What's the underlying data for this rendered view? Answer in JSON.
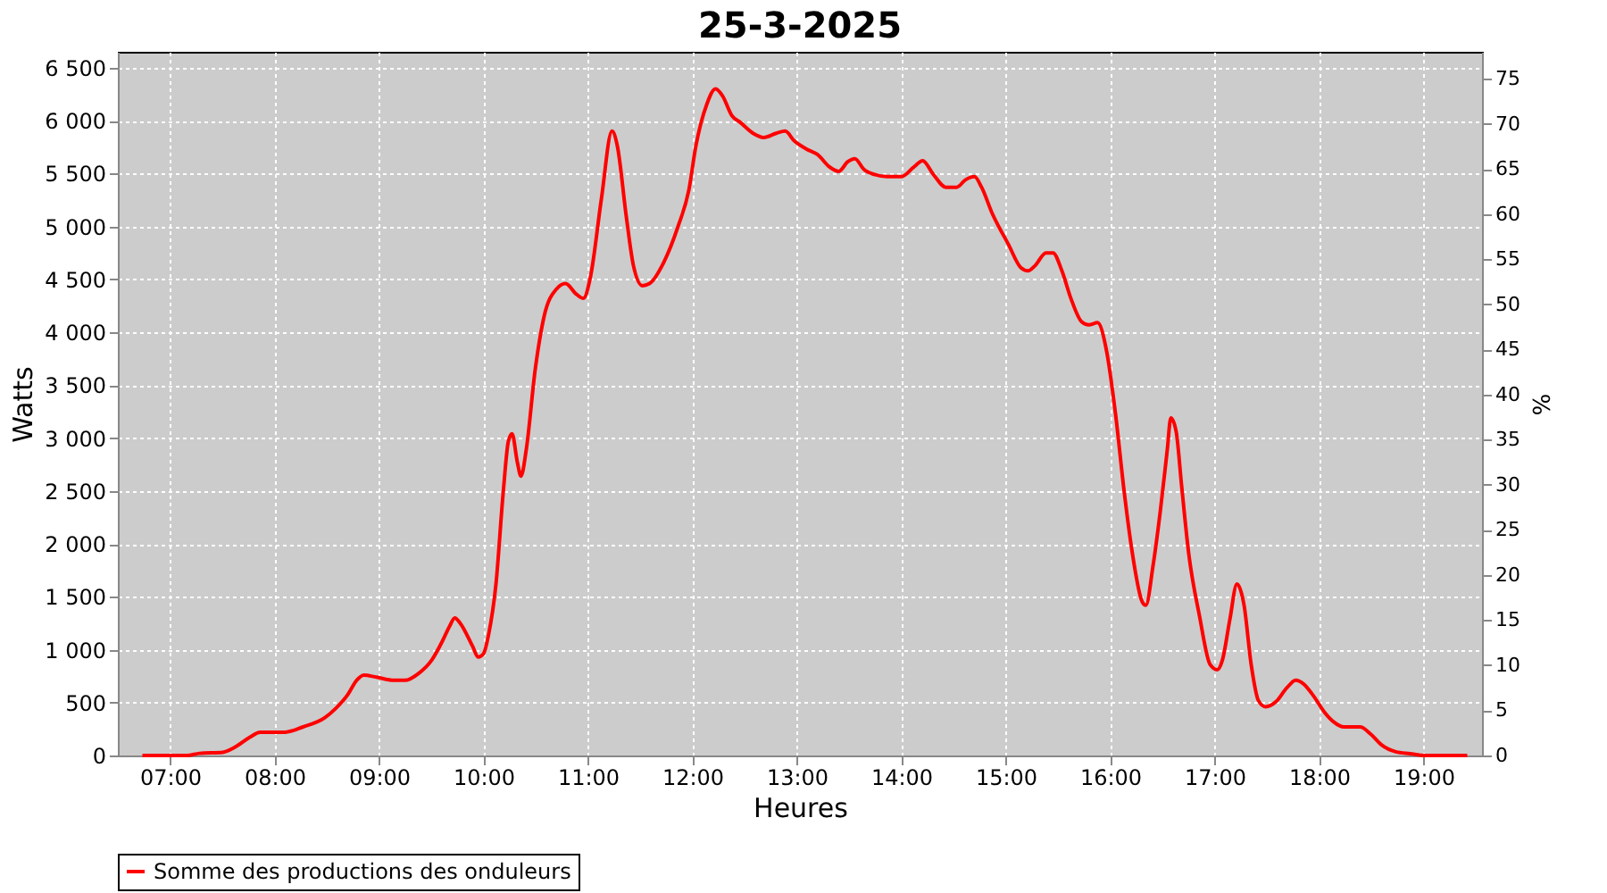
{
  "chart_data": {
    "type": "line",
    "title": "25-3-2025",
    "xlabel": "Heures",
    "ylabel": "Watts",
    "y2label": "%",
    "xlim": [
      6.5,
      19.56
    ],
    "xticks": [
      {
        "value": 7,
        "label": "07:00"
      },
      {
        "value": 8,
        "label": "08:00"
      },
      {
        "value": 9,
        "label": "09:00"
      },
      {
        "value": 10,
        "label": "10:00"
      },
      {
        "value": 11,
        "label": "11:00"
      },
      {
        "value": 12,
        "label": "12:00"
      },
      {
        "value": 13,
        "label": "13:00"
      },
      {
        "value": 14,
        "label": "14:00"
      },
      {
        "value": 15,
        "label": "15:00"
      },
      {
        "value": 16,
        "label": "16:00"
      },
      {
        "value": 17,
        "label": "17:00"
      },
      {
        "value": 18,
        "label": "18:00"
      },
      {
        "value": 19,
        "label": "19:00"
      }
    ],
    "ylim": [
      0,
      6650
    ],
    "yticks": [
      0,
      500,
      {
        "value": 1000,
        "label": "1 000"
      },
      {
        "value": 1500,
        "label": "1 500"
      },
      {
        "value": 2000,
        "label": "2 000"
      },
      {
        "value": 2500,
        "label": "2 500"
      },
      {
        "value": 3000,
        "label": "3 000"
      },
      {
        "value": 3500,
        "label": "3 500"
      },
      {
        "value": 4000,
        "label": "4 000"
      },
      {
        "value": 4500,
        "label": "4 500"
      },
      {
        "value": 5000,
        "label": "5 000"
      },
      {
        "value": 5500,
        "label": "5 500"
      },
      {
        "value": 6000,
        "label": "6 000"
      },
      {
        "value": 6500,
        "label": "6 500"
      }
    ],
    "y2lim": [
      0,
      78
    ],
    "y2ticks": [
      0,
      5,
      10,
      15,
      20,
      25,
      30,
      35,
      40,
      45,
      50,
      55,
      60,
      65,
      70,
      75
    ],
    "grid": true,
    "legend": "bottom",
    "marker": "none",
    "line_style": "solid",
    "series": [
      {
        "name": "Somme des productions des onduleurs",
        "color": "#ff0000",
        "x": [
          6.735,
          7.162,
          7.282,
          7.504,
          7.624,
          7.761,
          7.863,
          8.103,
          8.274,
          8.479,
          8.581,
          8.701,
          8.786,
          8.855,
          8.974,
          9.145,
          9.248,
          9.385,
          9.504,
          9.607,
          9.675,
          9.726,
          9.778,
          9.897,
          9.949,
          10.0,
          10.051,
          10.12,
          10.188,
          10.239,
          10.274,
          10.325,
          10.359,
          10.41,
          10.496,
          10.581,
          10.701,
          10.786,
          10.889,
          10.957,
          11.026,
          11.128,
          11.231,
          11.282,
          11.368,
          11.436,
          11.521,
          11.59,
          11.726,
          11.863,
          11.966,
          12.034,
          12.137,
          12.222,
          12.291,
          12.376,
          12.462,
          12.581,
          12.684,
          12.803,
          12.889,
          12.974,
          13.094,
          13.197,
          13.316,
          13.402,
          13.487,
          13.556,
          13.641,
          13.744,
          13.863,
          14.0,
          14.12,
          14.205,
          14.308,
          14.427,
          14.53,
          14.615,
          14.701,
          14.769,
          14.872,
          15.026,
          15.145,
          15.214,
          15.282,
          15.385,
          15.453,
          15.538,
          15.624,
          15.726,
          15.795,
          15.88,
          15.966,
          16.051,
          16.137,
          16.205,
          16.308,
          16.342,
          16.41,
          16.479,
          16.547,
          16.581,
          16.632,
          16.684,
          16.752,
          16.855,
          16.957,
          17.026,
          17.077,
          17.145,
          17.214,
          17.282,
          17.35,
          17.419,
          17.487,
          17.59,
          17.692,
          17.778,
          17.846,
          17.949,
          18.051,
          18.137,
          18.239,
          18.393,
          18.496,
          18.598,
          18.735,
          18.872,
          19.009,
          19.419
        ],
        "values": [
          0,
          0,
          20,
          30,
          80,
          170,
          220,
          220,
          270,
          355,
          440,
          575,
          710,
          760,
          740,
          710,
          710,
          780,
          900,
          1080,
          1220,
          1300,
          1250,
          1030,
          930,
          960,
          1150,
          1620,
          2470,
          2970,
          3040,
          2770,
          2640,
          2890,
          3650,
          4150,
          4410,
          4460,
          4360,
          4320,
          4530,
          5250,
          5900,
          5760,
          5090,
          4630,
          4440,
          4460,
          4660,
          5000,
          5340,
          5760,
          6150,
          6300,
          6230,
          6050,
          5980,
          5880,
          5840,
          5880,
          5900,
          5810,
          5730,
          5680,
          5560,
          5520,
          5610,
          5640,
          5540,
          5490,
          5470,
          5470,
          5560,
          5620,
          5490,
          5370,
          5370,
          5440,
          5470,
          5370,
          5120,
          4830,
          4610,
          4580,
          4630,
          4750,
          4750,
          4580,
          4320,
          4100,
          4070,
          4090,
          3820,
          3230,
          2470,
          1960,
          1450,
          1420,
          1790,
          2300,
          2890,
          3190,
          3060,
          2550,
          1910,
          1320,
          860,
          810,
          910,
          1280,
          1620,
          1420,
          860,
          520,
          460,
          510,
          640,
          710,
          680,
          560,
          410,
          320,
          270,
          270,
          200,
          100,
          35,
          17,
          0,
          0
        ]
      }
    ]
  }
}
